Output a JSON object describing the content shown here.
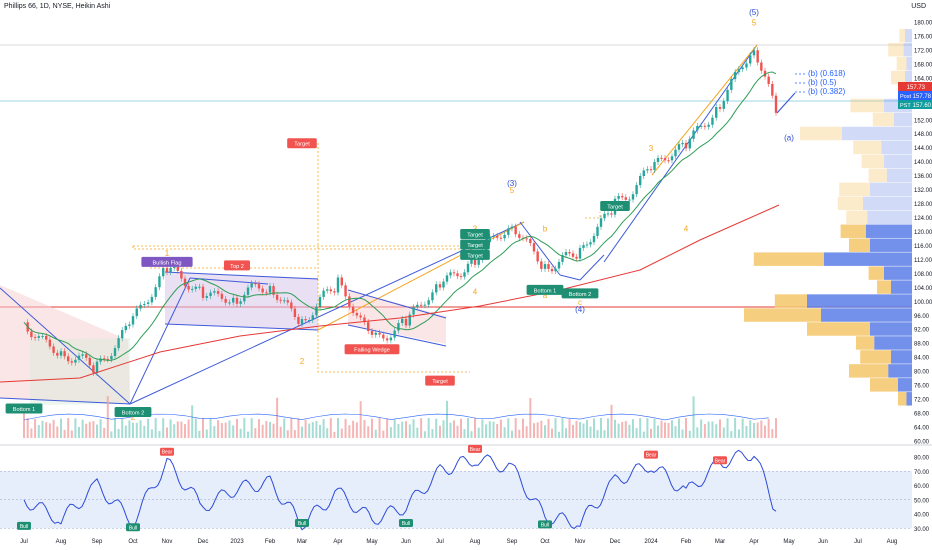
{
  "header": {
    "title": "Phillips 66, 1D, NYSE, Heikin Ashi",
    "currency": "USD"
  },
  "price_tags": {
    "last": "157.73",
    "post_label": "Post",
    "post": "157.78",
    "pst_label": "PST",
    "pst": "157.60"
  },
  "colors": {
    "up": "#26a69a",
    "down": "#ef5350",
    "ma_fast": "#2e9e56",
    "ma_slow": "#e53935",
    "trend_line": "#3f5bd9",
    "fib": "#2962ff",
    "vp_up": "#f5c66a",
    "vp_down": "#5b7ee6",
    "osc_line": "#2e4bd6",
    "osc_band": "#dbe7fb",
    "wave_orange": "#f5a623",
    "wave_blue": "#2e4bd6",
    "label_red": "#f05350",
    "label_green": "#1f8f73",
    "label_purple": "#7e57c2"
  },
  "chart_data": [
    {
      "type": "candlestick",
      "title": "Phillips 66, 1D, NYSE, Heikin Ashi",
      "x_labels": [
        "Jul",
        "Aug",
        "Sep",
        "Oct",
        "Nov",
        "Dec",
        "2023",
        "Feb",
        "Mar",
        "Apr",
        "May",
        "Jun",
        "Jul",
        "Aug",
        "Sep",
        "Oct",
        "Nov",
        "Dec",
        "2024",
        "Feb",
        "Mar",
        "Apr",
        "May",
        "Jun",
        "Jul",
        "Aug"
      ],
      "y_ticks": [
        60,
        64,
        68,
        72,
        76,
        80,
        84,
        88,
        92,
        96,
        100,
        104,
        108,
        112,
        116,
        120,
        124,
        128,
        132,
        136,
        140,
        144,
        148,
        152,
        156,
        160,
        164,
        168,
        172,
        176,
        180
      ],
      "ylim": [
        60,
        184
      ],
      "close_approx": [
        {
          "x": "Jul 2022",
          "y": 94
        },
        {
          "x": "Aug 2022",
          "y": 85
        },
        {
          "x": "Sep 2022",
          "y": 80
        },
        {
          "x": "Oct 2022",
          "y": 96
        },
        {
          "x": "Nov 2022",
          "y": 108
        },
        {
          "x": "Dec 2022",
          "y": 103
        },
        {
          "x": "Jan 2023",
          "y": 101
        },
        {
          "x": "Feb 2023",
          "y": 104
        },
        {
          "x": "Mar 2023",
          "y": 95
        },
        {
          "x": "Apr 2023",
          "y": 104
        },
        {
          "x": "May 2023",
          "y": 90
        },
        {
          "x": "Jun 2023",
          "y": 93
        },
        {
          "x": "Jul 2023",
          "y": 105
        },
        {
          "x": "Aug 2023",
          "y": 113
        },
        {
          "x": "Sep 2023",
          "y": 121
        },
        {
          "x": "Oct 2023",
          "y": 111
        },
        {
          "x": "Nov 2023",
          "y": 113
        },
        {
          "x": "Dec 2023",
          "y": 128
        },
        {
          "x": "Jan 2024",
          "y": 138
        },
        {
          "x": "Feb 2024",
          "y": 144
        },
        {
          "x": "Mar 2024",
          "y": 158
        },
        {
          "x": "Apr 2024",
          "y": 172
        },
        {
          "x": "Apr 2024 end",
          "y": 154
        }
      ],
      "annotations": {
        "wave_labels": [
          {
            "text": "(3)",
            "x": "Sep 2023",
            "y": 133,
            "color": "wave_blue"
          },
          {
            "text": "5",
            "x": "Sep 2023",
            "y": 131,
            "color": "wave_orange"
          },
          {
            "text": "(4)",
            "x": "Nov 2023",
            "y": 97,
            "color": "wave_blue"
          },
          {
            "text": "c",
            "x": "Nov 2023",
            "y": 99,
            "color": "wave_orange"
          },
          {
            "text": "3",
            "x": "Aug 2023",
            "y": 120,
            "color": "wave_orange"
          },
          {
            "text": "4",
            "x": "Aug 2023",
            "y": 102,
            "color": "wave_orange"
          },
          {
            "text": "a",
            "x": "Oct 2023",
            "y": 101,
            "color": "wave_orange"
          },
          {
            "text": "b",
            "x": "Oct 2023",
            "y": 120,
            "color": "wave_orange"
          },
          {
            "text": "3",
            "x": "Jan 2024",
            "y": 143,
            "color": "wave_orange"
          },
          {
            "text": "4",
            "x": "Feb 2024",
            "y": 120,
            "color": "wave_orange"
          },
          {
            "text": "(5)",
            "x": "Apr 2024",
            "y": 182,
            "color": "wave_blue"
          },
          {
            "text": "5",
            "x": "Apr 2024",
            "y": 179,
            "color": "wave_orange"
          },
          {
            "text": "(a)",
            "x": "May 2024",
            "y": 146,
            "color": "wave_blue"
          },
          {
            "text": "1",
            "x": "Nov 2022",
            "y": 113,
            "color": "wave_orange"
          },
          {
            "text": "2",
            "x": "Mar 2023",
            "y": 82,
            "color": "wave_orange"
          },
          {
            "text": "2",
            "x": "Oct 2022",
            "y": 66,
            "color": "wave_orange"
          },
          {
            "text": "1",
            "x": "Jul 2022",
            "y": 68,
            "color": "wave_orange"
          }
        ],
        "tags": [
          {
            "text": "Bullish Flag",
            "x": "Nov 2022",
            "y": 111,
            "kind": "purple"
          },
          {
            "text": "Top 2",
            "x": "Jan 2023",
            "y": 110,
            "kind": "red"
          },
          {
            "text": "Target",
            "x": "Mar 2023",
            "y": 145,
            "kind": "red"
          },
          {
            "text": "Falling Wedge",
            "x": "May 2023",
            "y": 86,
            "kind": "red"
          },
          {
            "text": "Target",
            "x": "Jul 2023",
            "y": 77,
            "kind": "red"
          },
          {
            "text": "Target",
            "x": "Aug 2023",
            "y": 113,
            "kind": "green"
          },
          {
            "text": "Target",
            "x": "Aug 2023",
            "y": 116,
            "kind": "green"
          },
          {
            "text": "Target",
            "x": "Aug 2023",
            "y": 119,
            "kind": "green"
          },
          {
            "text": "Target",
            "x": "Dec 2023",
            "y": 127,
            "kind": "green"
          },
          {
            "text": "Bottom 1",
            "x": "Oct 2023",
            "y": 103,
            "kind": "green"
          },
          {
            "text": "Bottom 2",
            "x": "Nov 2023",
            "y": 102,
            "kind": "green"
          },
          {
            "text": "Bottom 1",
            "x": "Jul 2022",
            "y": 69,
            "kind": "green"
          },
          {
            "text": "Bottom 2",
            "x": "Oct 2022",
            "y": 68,
            "kind": "green"
          }
        ],
        "fib_targets": [
          "(b) (0.618)",
          "(b) (0.5)",
          "(b) (0.382)"
        ]
      }
    },
    {
      "type": "line",
      "title": "",
      "y_ticks": [
        30,
        40,
        50,
        60,
        70,
        80
      ],
      "ylim": [
        28,
        87
      ],
      "band": [
        30,
        70
      ],
      "values_approx": [
        {
          "x": "Jul 2022",
          "y": 50
        },
        {
          "x": "Aug 2022",
          "y": 36
        },
        {
          "x": "Sep 2022",
          "y": 60
        },
        {
          "x": "Oct 2022",
          "y": 35
        },
        {
          "x": "Nov 2022",
          "y": 76
        },
        {
          "x": "Dec 2022",
          "y": 45
        },
        {
          "x": "Jan 2023",
          "y": 58
        },
        {
          "x": "Feb 2023",
          "y": 62
        },
        {
          "x": "Mar 2023",
          "y": 33
        },
        {
          "x": "Apr 2023",
          "y": 55
        },
        {
          "x": "May 2023",
          "y": 36
        },
        {
          "x": "Jun 2023",
          "y": 45
        },
        {
          "x": "Jul 2023",
          "y": 70
        },
        {
          "x": "Aug 2023",
          "y": 79
        },
        {
          "x": "Sep 2023",
          "y": 72
        },
        {
          "x": "Oct 2023",
          "y": 38
        },
        {
          "x": "Nov 2023",
          "y": 34
        },
        {
          "x": "Dec 2023",
          "y": 63
        },
        {
          "x": "Jan 2024",
          "y": 75
        },
        {
          "x": "Feb 2024",
          "y": 55
        },
        {
          "x": "Mar 2024",
          "y": 76
        },
        {
          "x": "Apr 2024",
          "y": 83
        },
        {
          "x": "Apr 2024 end",
          "y": 42
        }
      ],
      "tags": [
        {
          "text": "Bear",
          "x": "Nov 2022",
          "y": 83
        },
        {
          "text": "Bear",
          "x": "Aug 2023",
          "y": 85
        },
        {
          "text": "Bear",
          "x": "Jan 2024",
          "y": 81
        },
        {
          "text": "Bear",
          "x": "Mar 2024",
          "y": 77
        },
        {
          "text": "Bull",
          "x": "Jul 2022",
          "y": 31
        },
        {
          "text": "Bull",
          "x": "Oct 2022",
          "y": 30
        },
        {
          "text": "Bull",
          "x": "Mar 2023",
          "y": 33
        },
        {
          "text": "Bull",
          "x": "Jun 2023",
          "y": 33
        },
        {
          "text": "Bull",
          "x": "Oct 2023",
          "y": 32
        }
      ]
    }
  ]
}
